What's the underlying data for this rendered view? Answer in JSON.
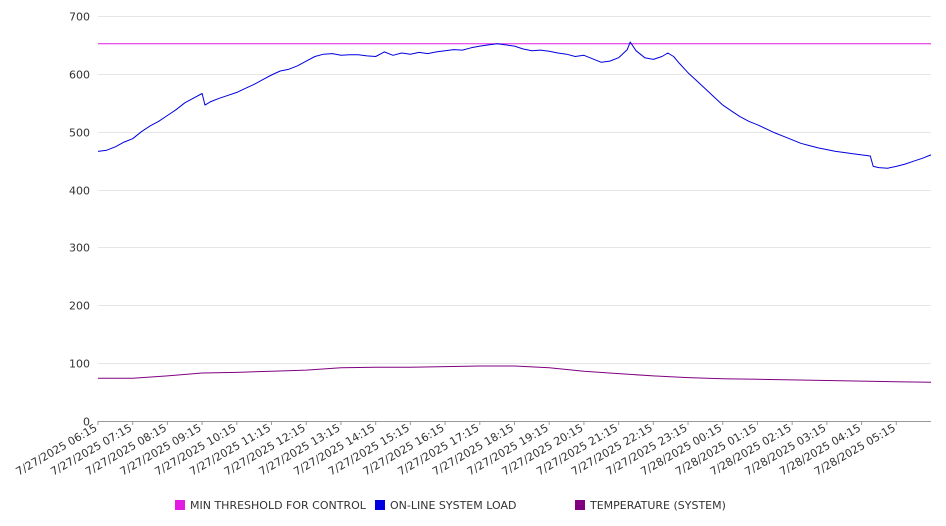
{
  "chart_data": {
    "type": "line",
    "title": "",
    "xlabel": "",
    "ylabel": "",
    "ylim": [
      0,
      700
    ],
    "yticks": [
      0,
      100,
      200,
      300,
      400,
      500,
      600,
      700
    ],
    "grid": true,
    "legend_position": "bottom",
    "x_start": "2025-07-27T06:15",
    "x_end": "2025-07-28T06:15",
    "xtick_labels": [
      "7/27/2025 06:15",
      "7/27/2025 07:15",
      "7/27/2025 08:15",
      "7/27/2025 09:15",
      "7/27/2025 10:15",
      "7/27/2025 11:15",
      "7/27/2025 12:15",
      "7/27/2025 13:15",
      "7/27/2025 14:15",
      "7/27/2025 15:15",
      "7/27/2025 16:15",
      "7/27/2025 17:15",
      "7/27/2025 18:15",
      "7/27/2025 19:15",
      "7/27/2025 20:15",
      "7/27/2025 21:15",
      "7/27/2025 22:15",
      "7/27/2025 23:15",
      "7/28/2025 00:15",
      "7/28/2025 01:15",
      "7/28/2025 02:15",
      "7/28/2025 03:15",
      "7/28/2025 04:15",
      "7/28/2025 05:15"
    ],
    "series": [
      {
        "name": "MIN THRESHOLD FOR CONTROL",
        "color": "#e21ce2",
        "points": [
          [
            "2025-07-27T06:15",
            652
          ],
          [
            "2025-07-28T06:15",
            652
          ]
        ]
      },
      {
        "name": "ON-LINE SYSTEM LOAD",
        "color": "#0000e0",
        "points": [
          [
            "2025-07-27T06:15",
            466
          ],
          [
            "2025-07-27T06:30",
            468
          ],
          [
            "2025-07-27T06:45",
            474
          ],
          [
            "2025-07-27T07:00",
            482
          ],
          [
            "2025-07-27T07:15",
            488
          ],
          [
            "2025-07-27T07:30",
            500
          ],
          [
            "2025-07-27T07:45",
            510
          ],
          [
            "2025-07-27T08:00",
            518
          ],
          [
            "2025-07-27T08:15",
            528
          ],
          [
            "2025-07-27T08:30",
            538
          ],
          [
            "2025-07-27T08:45",
            550
          ],
          [
            "2025-07-27T09:00",
            558
          ],
          [
            "2025-07-27T09:15",
            566
          ],
          [
            "2025-07-27T09:20",
            546
          ],
          [
            "2025-07-27T09:30",
            552
          ],
          [
            "2025-07-27T09:45",
            558
          ],
          [
            "2025-07-27T10:00",
            563
          ],
          [
            "2025-07-27T10:15",
            568
          ],
          [
            "2025-07-27T10:30",
            575
          ],
          [
            "2025-07-27T10:45",
            582
          ],
          [
            "2025-07-27T11:00",
            590
          ],
          [
            "2025-07-27T11:15",
            598
          ],
          [
            "2025-07-27T11:30",
            605
          ],
          [
            "2025-07-27T11:45",
            608
          ],
          [
            "2025-07-27T12:00",
            614
          ],
          [
            "2025-07-27T12:15",
            622
          ],
          [
            "2025-07-27T12:30",
            630
          ],
          [
            "2025-07-27T12:45",
            634
          ],
          [
            "2025-07-27T13:00",
            635
          ],
          [
            "2025-07-27T13:15",
            632
          ],
          [
            "2025-07-27T13:30",
            633
          ],
          [
            "2025-07-27T13:45",
            633
          ],
          [
            "2025-07-27T14:00",
            631
          ],
          [
            "2025-07-27T14:15",
            630
          ],
          [
            "2025-07-27T14:30",
            638
          ],
          [
            "2025-07-27T14:45",
            632
          ],
          [
            "2025-07-27T15:00",
            636
          ],
          [
            "2025-07-27T15:15",
            634
          ],
          [
            "2025-07-27T15:30",
            637
          ],
          [
            "2025-07-27T15:45",
            635
          ],
          [
            "2025-07-27T16:00",
            638
          ],
          [
            "2025-07-27T16:15",
            640
          ],
          [
            "2025-07-27T16:30",
            642
          ],
          [
            "2025-07-27T16:45",
            641
          ],
          [
            "2025-07-27T17:00",
            645
          ],
          [
            "2025-07-27T17:15",
            648
          ],
          [
            "2025-07-27T17:30",
            650
          ],
          [
            "2025-07-27T17:45",
            652
          ],
          [
            "2025-07-27T18:00",
            650
          ],
          [
            "2025-07-27T18:15",
            648
          ],
          [
            "2025-07-27T18:30",
            643
          ],
          [
            "2025-07-27T18:45",
            640
          ],
          [
            "2025-07-27T19:00",
            641
          ],
          [
            "2025-07-27T19:15",
            639
          ],
          [
            "2025-07-27T19:30",
            636
          ],
          [
            "2025-07-27T19:45",
            634
          ],
          [
            "2025-07-27T20:00",
            630
          ],
          [
            "2025-07-27T20:15",
            632
          ],
          [
            "2025-07-27T20:30",
            626
          ],
          [
            "2025-07-27T20:45",
            620
          ],
          [
            "2025-07-27T21:00",
            622
          ],
          [
            "2025-07-27T21:15",
            628
          ],
          [
            "2025-07-27T21:30",
            642
          ],
          [
            "2025-07-27T21:35",
            655
          ],
          [
            "2025-07-27T21:45",
            640
          ],
          [
            "2025-07-27T22:00",
            628
          ],
          [
            "2025-07-27T22:15",
            625
          ],
          [
            "2025-07-27T22:30",
            630
          ],
          [
            "2025-07-27T22:40",
            636
          ],
          [
            "2025-07-27T22:50",
            630
          ],
          [
            "2025-07-27T23:00",
            618
          ],
          [
            "2025-07-27T23:15",
            602
          ],
          [
            "2025-07-27T23:30",
            588
          ],
          [
            "2025-07-27T23:45",
            574
          ],
          [
            "2025-07-28T00:00",
            560
          ],
          [
            "2025-07-28T00:15",
            546
          ],
          [
            "2025-07-28T00:30",
            536
          ],
          [
            "2025-07-28T00:45",
            526
          ],
          [
            "2025-07-28T01:00",
            518
          ],
          [
            "2025-07-28T01:15",
            512
          ],
          [
            "2025-07-28T01:30",
            505
          ],
          [
            "2025-07-28T01:45",
            498
          ],
          [
            "2025-07-28T02:00",
            492
          ],
          [
            "2025-07-28T02:15",
            486
          ],
          [
            "2025-07-28T02:30",
            480
          ],
          [
            "2025-07-28T02:45",
            476
          ],
          [
            "2025-07-28T03:00",
            472
          ],
          [
            "2025-07-28T03:15",
            469
          ],
          [
            "2025-07-28T03:30",
            466
          ],
          [
            "2025-07-28T03:45",
            464
          ],
          [
            "2025-07-28T04:00",
            462
          ],
          [
            "2025-07-28T04:15",
            460
          ],
          [
            "2025-07-28T04:30",
            458
          ],
          [
            "2025-07-28T04:35",
            440
          ],
          [
            "2025-07-28T04:45",
            438
          ],
          [
            "2025-07-28T05:00",
            437
          ],
          [
            "2025-07-28T05:15",
            440
          ],
          [
            "2025-07-28T05:30",
            444
          ],
          [
            "2025-07-28T05:45",
            449
          ],
          [
            "2025-07-28T06:00",
            454
          ],
          [
            "2025-07-28T06:15",
            460
          ]
        ]
      },
      {
        "name": "TEMPERATURE (SYSTEM)",
        "color": "#800080",
        "points": [
          [
            "2025-07-27T06:15",
            74
          ],
          [
            "2025-07-27T07:15",
            74
          ],
          [
            "2025-07-27T08:15",
            78
          ],
          [
            "2025-07-27T09:15",
            83
          ],
          [
            "2025-07-27T10:15",
            84
          ],
          [
            "2025-07-27T11:15",
            86
          ],
          [
            "2025-07-27T12:15",
            88
          ],
          [
            "2025-07-27T13:15",
            92
          ],
          [
            "2025-07-27T14:15",
            93
          ],
          [
            "2025-07-27T15:15",
            93
          ],
          [
            "2025-07-27T16:15",
            94
          ],
          [
            "2025-07-27T17:15",
            95
          ],
          [
            "2025-07-27T18:15",
            95
          ],
          [
            "2025-07-27T19:15",
            92
          ],
          [
            "2025-07-27T20:15",
            86
          ],
          [
            "2025-07-27T21:15",
            82
          ],
          [
            "2025-07-27T22:15",
            78
          ],
          [
            "2025-07-27T23:15",
            75
          ],
          [
            "2025-07-28T00:15",
            73
          ],
          [
            "2025-07-28T01:15",
            72
          ],
          [
            "2025-07-28T02:15",
            71
          ],
          [
            "2025-07-28T03:15",
            70
          ],
          [
            "2025-07-28T04:15",
            69
          ],
          [
            "2025-07-28T05:15",
            68
          ],
          [
            "2025-07-28T06:15",
            67
          ]
        ]
      }
    ]
  }
}
